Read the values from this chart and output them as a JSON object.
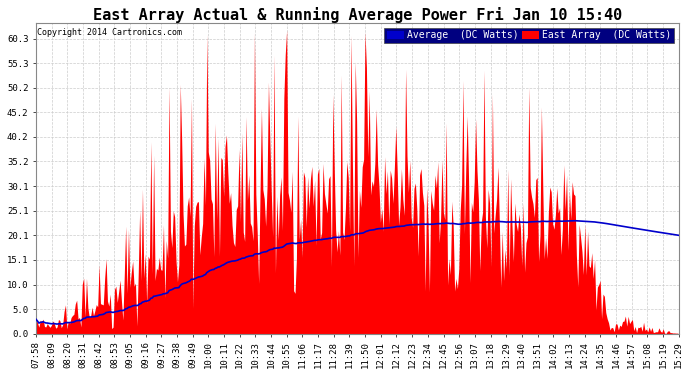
{
  "title": "East Array Actual & Running Average Power Fri Jan 10 15:40",
  "copyright": "Copyright 2014 Cartronics.com",
  "legend_avg": "Average  (DC Watts)",
  "legend_east": "East Array  (DC Watts)",
  "ymin": 0.0,
  "ymax": 63.5,
  "yticks": [
    0.0,
    5.0,
    10.0,
    15.1,
    20.1,
    25.1,
    30.1,
    35.2,
    40.2,
    45.2,
    50.2,
    55.3,
    60.3
  ],
  "background_color": "#ffffff",
  "grid_color": "#cccccc",
  "bar_color": "#ff0000",
  "avg_color": "#0000cc",
  "title_color": "#000000",
  "copyright_color": "#000000",
  "tick_label_fontsize": 6.5,
  "title_fontsize": 11,
  "legend_fontsize": 7,
  "copyright_fontsize": 6,
  "n_points": 460,
  "tick_labels": [
    "07:58",
    "08:09",
    "08:20",
    "08:31",
    "08:42",
    "08:53",
    "09:05",
    "09:16",
    "09:27",
    "09:38",
    "09:49",
    "10:00",
    "10:11",
    "10:22",
    "10:33",
    "10:44",
    "10:55",
    "11:06",
    "11:17",
    "11:28",
    "11:39",
    "11:50",
    "12:01",
    "12:12",
    "12:23",
    "12:34",
    "12:45",
    "12:56",
    "13:07",
    "13:18",
    "13:29",
    "13:40",
    "13:51",
    "14:02",
    "14:13",
    "14:24",
    "14:35",
    "14:46",
    "14:57",
    "15:08",
    "15:19",
    "15:29"
  ]
}
